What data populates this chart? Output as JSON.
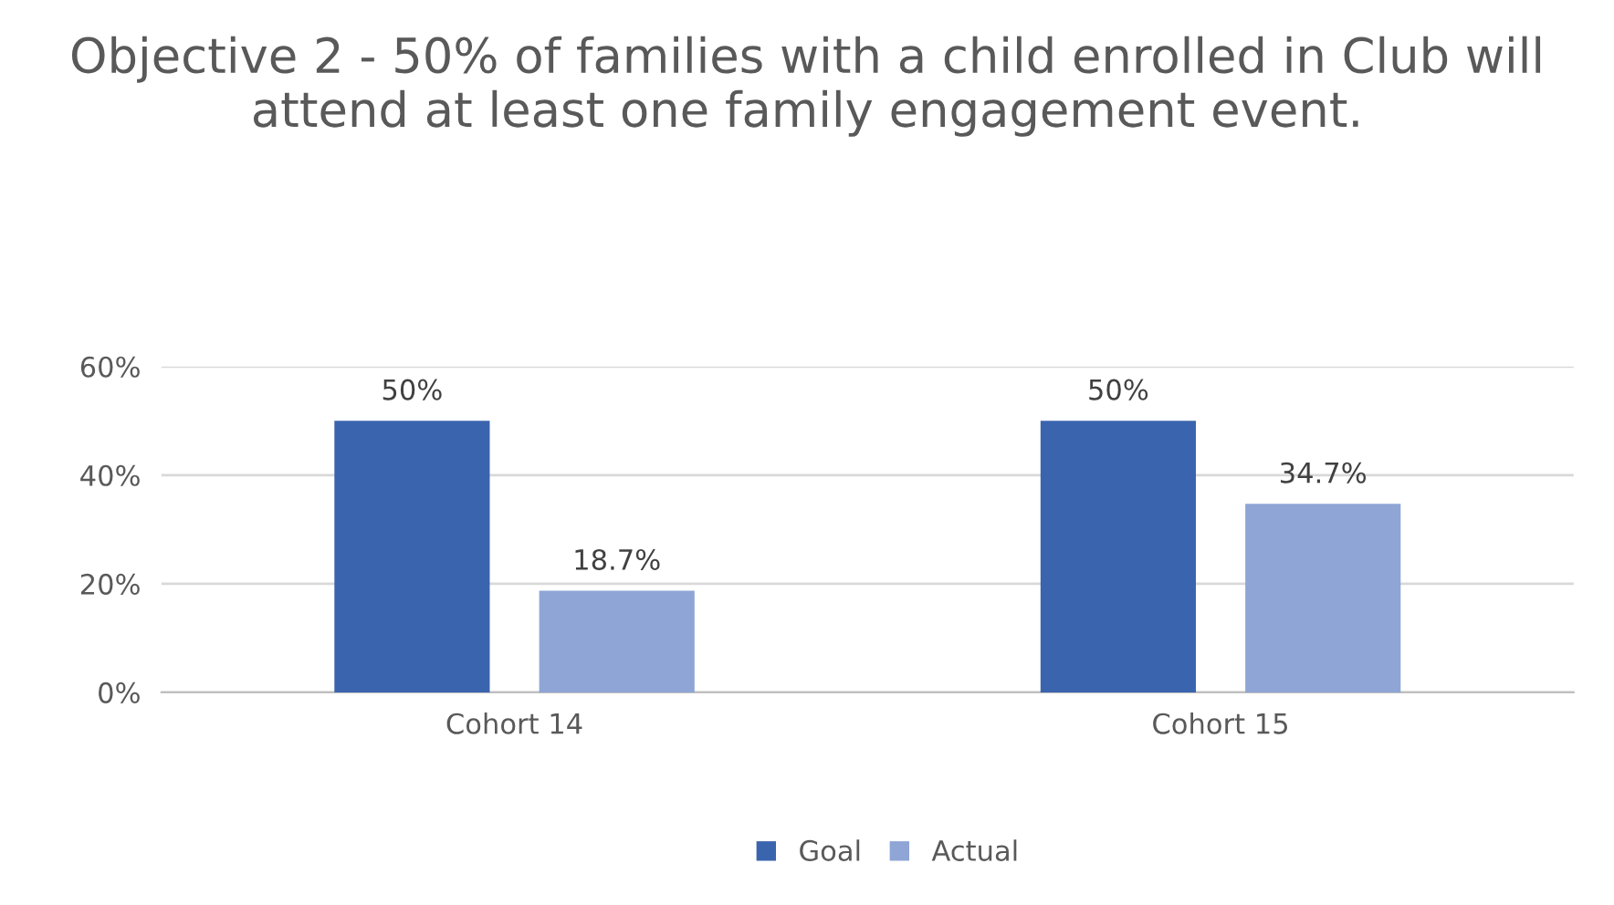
{
  "chart_data": {
    "type": "bar",
    "title": "Objective 2 - 50% of families with a child enrolled in Club will attend at least one family engagement event.",
    "categories": [
      "Cohort 14",
      "Cohort 15"
    ],
    "series": [
      {
        "name": "Goal",
        "color": "#3a64ae",
        "values": [
          50,
          50
        ],
        "value_labels": [
          "50%",
          "50%"
        ]
      },
      {
        "name": "Actual",
        "color": "#8ea5d5",
        "values": [
          18.7,
          34.7
        ],
        "value_labels": [
          "18.7%",
          "34.7%"
        ]
      }
    ],
    "ylim": [
      0,
      60
    ],
    "yticks": [
      {
        "value": 0,
        "label": "0%"
      },
      {
        "value": 20,
        "label": "20%"
      },
      {
        "value": 40,
        "label": "40%"
      },
      {
        "value": 60,
        "label": "60%"
      }
    ],
    "grid": "y",
    "legend": "bottom"
  }
}
